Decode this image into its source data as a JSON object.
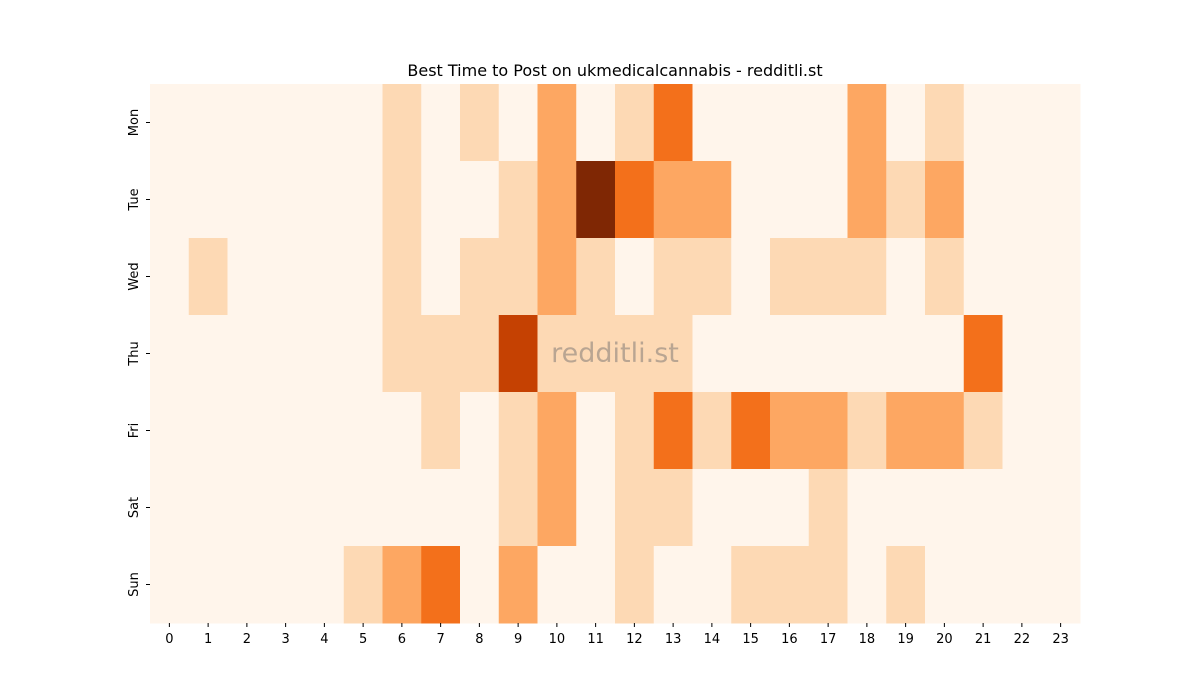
{
  "chart_data": {
    "type": "heatmap",
    "title": "Best Time to Post on ukmedicalcannabis - redditli.st",
    "watermark": "redditli.st",
    "xlabel": "",
    "ylabel": "",
    "x_categories": [
      "0",
      "1",
      "2",
      "3",
      "4",
      "5",
      "6",
      "7",
      "8",
      "9",
      "10",
      "11",
      "12",
      "13",
      "14",
      "15",
      "16",
      "17",
      "18",
      "19",
      "20",
      "21",
      "22",
      "23"
    ],
    "y_categories": [
      "Mon",
      "Tue",
      "Wed",
      "Thu",
      "Fri",
      "Sat",
      "Sun"
    ],
    "value_range": [
      0,
      4
    ],
    "colorscale": [
      "#fff5eb",
      "#fdd9b4",
      "#fda762",
      "#f3701b",
      "#c54102",
      "#7f2704"
    ],
    "values": [
      [
        0,
        0,
        0,
        0,
        0,
        0,
        1,
        0,
        1,
        0,
        2,
        0,
        1,
        3,
        0,
        0,
        0,
        0,
        2,
        0,
        1,
        0,
        0,
        0
      ],
      [
        0,
        0,
        0,
        0,
        0,
        0,
        1,
        0,
        0,
        1,
        2,
        5,
        3,
        2,
        2,
        0,
        0,
        0,
        2,
        1,
        2,
        0,
        0,
        0
      ],
      [
        0,
        1,
        0,
        0,
        0,
        0,
        1,
        0,
        1,
        1,
        2,
        1,
        0,
        1,
        1,
        0,
        1,
        1,
        1,
        0,
        1,
        0,
        0,
        0
      ],
      [
        0,
        0,
        0,
        0,
        0,
        0,
        1,
        1,
        1,
        4,
        1,
        1,
        1,
        1,
        0,
        0,
        0,
        0,
        0,
        0,
        0,
        3,
        0,
        0
      ],
      [
        0,
        0,
        0,
        0,
        0,
        0,
        0,
        1,
        0,
        1,
        2,
        0,
        1,
        3,
        1,
        3,
        2,
        2,
        1,
        2,
        2,
        1,
        0,
        0
      ],
      [
        0,
        0,
        0,
        0,
        0,
        0,
        0,
        0,
        0,
        1,
        2,
        0,
        1,
        1,
        0,
        0,
        0,
        1,
        0,
        0,
        0,
        0,
        0,
        0
      ],
      [
        0,
        0,
        0,
        0,
        0,
        1,
        2,
        3,
        0,
        2,
        0,
        0,
        1,
        0,
        0,
        1,
        1,
        1,
        0,
        1,
        0,
        0,
        0,
        0
      ]
    ]
  }
}
